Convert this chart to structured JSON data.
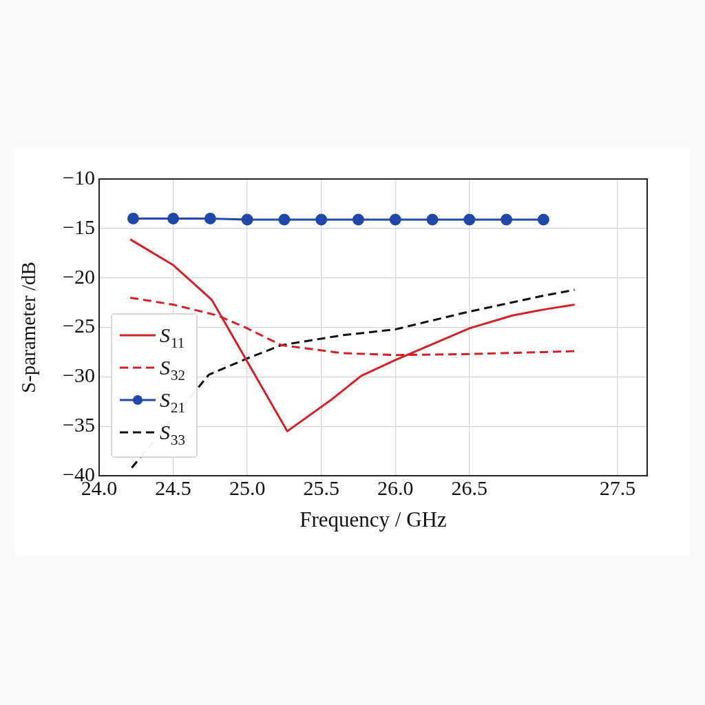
{
  "chart_data": {
    "type": "line",
    "xlabel": "Frequency / GHz",
    "ylabel": "S-parameter /dB",
    "xlim": [
      24.0,
      27.7
    ],
    "xticks": [
      {
        "value": 24.0,
        "label": "24.0"
      },
      {
        "value": 24.5,
        "label": "24.5"
      },
      {
        "value": 25.0,
        "label": "25.0"
      },
      {
        "value": 25.5,
        "label": "25.5"
      },
      {
        "value": 26.0,
        "label": "26.0"
      },
      {
        "value": 26.5,
        "label": "26.5"
      },
      {
        "value": 27.5,
        "label": "27.5"
      }
    ],
    "ylim": [
      -40,
      -10
    ],
    "yticks": [
      {
        "value": -10,
        "label": "−10"
      },
      {
        "value": -15,
        "label": "−15"
      },
      {
        "value": -20,
        "label": "−20"
      },
      {
        "value": -25,
        "label": "−25"
      },
      {
        "value": -30,
        "label": "−30"
      },
      {
        "value": -35,
        "label": "−35"
      },
      {
        "value": -40,
        "label": "−40"
      }
    ],
    "grid": true,
    "legend": "bottom left",
    "series": [
      {
        "name": "S$_{11}$",
        "color": "#d42027",
        "line_style": "solid",
        "marker": "none",
        "x": [
          24.21,
          24.5,
          24.76,
          25.27,
          25.56,
          25.77,
          26.0,
          26.5,
          26.79,
          27.0,
          27.21
        ],
        "values": [
          -16.1,
          -18.7,
          -22.2,
          -35.5,
          -32.4,
          -29.9,
          -28.3,
          -25.1,
          -23.8,
          -23.2,
          -22.7
        ]
      },
      {
        "name": "S$_{32}$",
        "color": "#d42027",
        "line_style": "dashed",
        "marker": "none",
        "x": [
          24.21,
          24.5,
          24.8,
          25.0,
          25.23,
          25.64,
          26.0,
          26.5,
          27.0,
          27.21
        ],
        "values": [
          -22.0,
          -22.7,
          -23.8,
          -25.1,
          -26.8,
          -27.6,
          -27.8,
          -27.7,
          -27.5,
          -27.4
        ]
      },
      {
        "name": "S$_{21}$",
        "color": "#1f48a8",
        "line_style": "solid",
        "marker": "circle",
        "x": [
          24.23,
          24.5,
          24.75,
          25.0,
          25.25,
          25.5,
          25.75,
          26.0,
          26.25,
          26.5,
          26.75,
          27.0
        ],
        "values": [
          -14.0,
          -14.0,
          -14.0,
          -14.1,
          -14.1,
          -14.1,
          -14.1,
          -14.1,
          -14.1,
          -14.1,
          -14.1,
          -14.1
        ]
      },
      {
        "name": "S$_{33}$",
        "color": "#111111",
        "line_style": "dashed",
        "marker": "none",
        "x": [
          24.22,
          24.74,
          24.99,
          25.23,
          25.64,
          26.0,
          26.5,
          27.0,
          27.21
        ],
        "values": [
          -39.2,
          -29.8,
          -28.2,
          -26.8,
          -25.8,
          -25.2,
          -23.4,
          -21.8,
          -21.2
        ]
      }
    ]
  }
}
